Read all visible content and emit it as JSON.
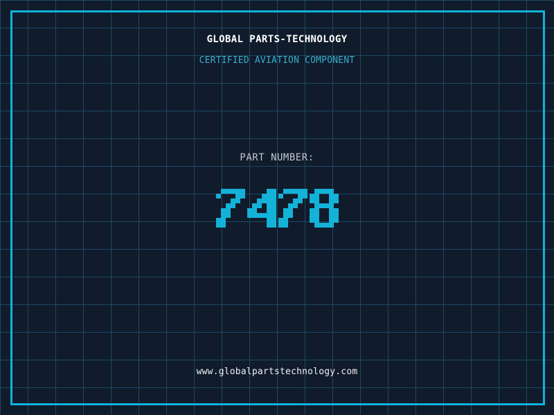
{
  "header": {
    "title": "GLOBAL PARTS-TECHNOLOGY",
    "subtitle": "CERTIFIED AVIATION COMPONENT"
  },
  "part": {
    "label": "PART NUMBER:",
    "number": "7478"
  },
  "footer": {
    "url": "www.globalpartstechnology.com"
  },
  "colors": {
    "background": "#101b2b",
    "grid_line": "#1d4a63",
    "frame": "#0db5de",
    "title_text": "#ffffff",
    "subtitle_text": "#36aecd",
    "label_text": "#c3c8d2",
    "digit_color": "#14b2d8",
    "url_text": "#eef0f2"
  }
}
